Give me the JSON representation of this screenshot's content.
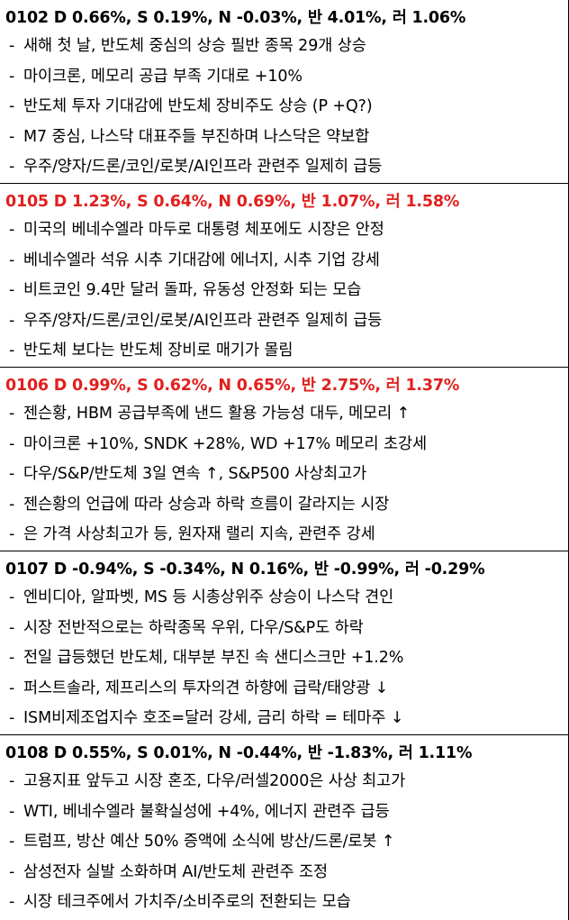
{
  "colors": {
    "up_header": "#e0201e",
    "normal_header": "#000000",
    "divider": "#000000"
  },
  "days": [
    {
      "header": "0102 D 0.66%, S 0.19%, N -0.03%, 반 4.01%, 러 1.06%",
      "highlight": false,
      "bullets": [
        "새해 첫 날, 반도체 중심의 상승 필반 종목 29개 상승",
        "마이크론, 메모리 공급 부족 기대로 +10%",
        "반도체 투자 기대감에 반도체 장비주도 상승 (P +Q?)",
        "M7 중심, 나스닥 대표주들 부진하며 나스닥은 약보합",
        "우주/양자/드론/코인/로봇/AI인프라 관련주 일제히 급등"
      ]
    },
    {
      "header": "0105 D 1.23%, S 0.64%, N 0.69%, 반 1.07%, 러 1.58%",
      "highlight": true,
      "bullets": [
        "미국의 베네수엘라 마두로 대통령 체포에도 시장은 안정",
        "베네수엘라 석유 시추 기대감에 에너지, 시추 기업 강세",
        "비트코인 9.4만 달러 돌파, 유동성 안정화 되는 모습",
        "우주/양자/드론/코인/로봇/AI인프라 관련주 일제히 급등",
        "반도체 보다는 반도체 장비로 매기가 몰림"
      ]
    },
    {
      "header": "0106 D 0.99%, S 0.62%, N 0.65%, 반 2.75%, 러 1.37%",
      "highlight": true,
      "bullets": [
        "젠슨황, HBM 공급부족에 낸드 활용 가능성 대두, 메모리 ↑",
        "마이크론 +10%, SNDK +28%, WD +17% 메모리 초강세",
        "다우/S&P/반도체 3일 연속 ↑, S&P500 사상최고가",
        "젠슨황의 언급에 따라 상승과 하락 흐름이 갈라지는 시장",
        "은 가격 사상최고가 등, 원자재 랠리 지속, 관련주 강세"
      ]
    },
    {
      "header": "0107 D -0.94%, S -0.34%, N 0.16%, 반 -0.99%, 러 -0.29%",
      "highlight": false,
      "bullets": [
        "엔비디아, 알파벳, MS 등 시총상위주 상승이 나스닥 견인",
        "시장 전반적으로는 하락종목 우위, 다우/S&P도 하락",
        "전일 급등했던 반도체, 대부분 부진 속 샌디스크만 +1.2%",
        "퍼스트솔라, 제프리스의 투자의견 하향에 급락/태양광 ↓",
        "ISM비제조업지수 호조=달러 강세, 금리 하락 = 테마주 ↓"
      ]
    },
    {
      "header": "0108 D 0.55%, S 0.01%, N -0.44%, 반 -1.83%, 러 1.11%",
      "highlight": false,
      "bullets": [
        "고용지표 앞두고 시장 혼조, 다우/러셀2000은 사상 최고가",
        "WTI, 베네수엘라 불확실성에 +4%, 에너지 관련주 급등",
        "트럼프, 방산 예산 50% 증액에 소식에 방산/드론/로봇 ↑",
        "삼성전자 실발 소화하며 AI/반도체 관련주 조정",
        "시장 테크주에서 가치주/소비주로의 전환되는 모습"
      ]
    }
  ]
}
